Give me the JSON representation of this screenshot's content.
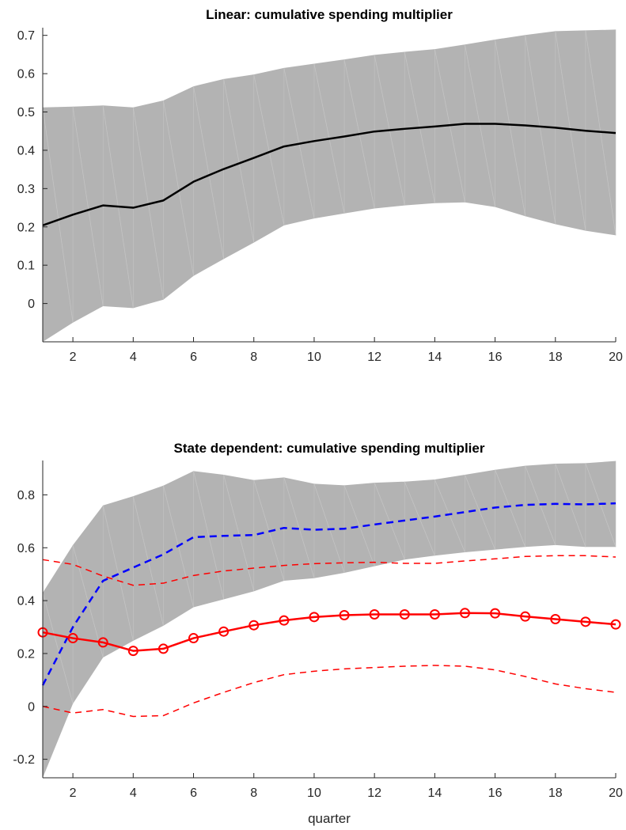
{
  "chart_data": [
    {
      "type": "line",
      "title": "Linear: cumulative spending multiplier",
      "xlabel": "",
      "ylabel": "",
      "xlim": [
        1,
        20
      ],
      "ylim": [
        -0.1,
        0.72
      ],
      "xticks": [
        2,
        4,
        6,
        8,
        10,
        12,
        14,
        16,
        18,
        20
      ],
      "yticks": [
        0,
        0.1,
        0.2,
        0.3,
        0.4,
        0.5,
        0.6,
        0.7
      ],
      "ytick_labels": [
        "0",
        "0.1",
        "0.2",
        "0.3",
        "0.4",
        "0.5",
        "0.6",
        "0.7"
      ],
      "grid": false,
      "band_color": "#b3b3b3",
      "x": [
        1,
        2,
        3,
        4,
        5,
        6,
        7,
        8,
        9,
        10,
        11,
        12,
        13,
        14,
        15,
        16,
        17,
        18,
        19,
        20
      ],
      "band": {
        "upper": [
          0.512,
          0.514,
          0.517,
          0.512,
          0.53,
          0.567,
          0.586,
          0.598,
          0.615,
          0.626,
          0.637,
          0.649,
          0.657,
          0.664,
          0.676,
          0.689,
          0.701,
          0.711,
          0.713,
          0.715
        ],
        "lower": [
          -0.1,
          -0.05,
          -0.007,
          -0.012,
          0.01,
          0.072,
          0.116,
          0.159,
          0.204,
          0.222,
          0.235,
          0.248,
          0.256,
          0.262,
          0.264,
          0.252,
          0.228,
          0.207,
          0.19,
          0.178
        ]
      },
      "series": [
        {
          "color": "#000000",
          "style": "solid",
          "marker": "none",
          "values": [
            0.204,
            0.232,
            0.256,
            0.25,
            0.269,
            0.318,
            0.351,
            0.38,
            0.41,
            0.424,
            0.436,
            0.449,
            0.456,
            0.462,
            0.469,
            0.469,
            0.465,
            0.459,
            0.451,
            0.445
          ]
        }
      ]
    },
    {
      "type": "line",
      "title": "State dependent: cumulative spending multiplier",
      "xlabel": "quarter",
      "ylabel": "",
      "xlim": [
        1,
        20
      ],
      "ylim": [
        -0.27,
        0.93
      ],
      "xticks": [
        2,
        4,
        6,
        8,
        10,
        12,
        14,
        16,
        18,
        20
      ],
      "yticks": [
        -0.2,
        0,
        0.2,
        0.4,
        0.6,
        0.8
      ],
      "ytick_labels": [
        "-0.2",
        "0",
        "0.2",
        "0.4",
        "0.6",
        "0.8"
      ],
      "grid": false,
      "band_color": "#b3b3b3",
      "x": [
        1,
        2,
        3,
        4,
        5,
        6,
        7,
        8,
        9,
        10,
        11,
        12,
        13,
        14,
        15,
        16,
        17,
        18,
        19,
        20
      ],
      "band": {
        "upper": [
          0.43,
          0.61,
          0.76,
          0.795,
          0.835,
          0.89,
          0.876,
          0.856,
          0.866,
          0.842,
          0.836,
          0.846,
          0.85,
          0.858,
          0.876,
          0.895,
          0.91,
          0.918,
          0.92,
          0.928
        ],
        "lower": [
          -0.27,
          0.01,
          0.185,
          0.248,
          0.305,
          0.375,
          0.405,
          0.435,
          0.475,
          0.485,
          0.505,
          0.53,
          0.555,
          0.57,
          0.583,
          0.593,
          0.603,
          0.61,
          0.603,
          0.603
        ]
      },
      "series": [
        {
          "color": "#0000ff",
          "style": "dashed",
          "marker": "none",
          "values": [
            0.08,
            0.3,
            0.475,
            0.525,
            0.575,
            0.64,
            0.645,
            0.648,
            0.675,
            0.668,
            0.672,
            0.688,
            0.703,
            0.718,
            0.735,
            0.752,
            0.762,
            0.766,
            0.764,
            0.768
          ]
        },
        {
          "color": "#ff0000",
          "style": "solid",
          "marker": "circle",
          "values": [
            0.28,
            0.258,
            0.242,
            0.21,
            0.218,
            0.258,
            0.283,
            0.307,
            0.325,
            0.338,
            0.345,
            0.348,
            0.348,
            0.348,
            0.353,
            0.352,
            0.34,
            0.33,
            0.32,
            0.31
          ]
        },
        {
          "color": "#ff0000",
          "style": "dashed",
          "marker": "none",
          "values": [
            0.555,
            0.537,
            0.493,
            0.458,
            0.466,
            0.495,
            0.512,
            0.523,
            0.533,
            0.54,
            0.543,
            0.545,
            0.541,
            0.541,
            0.55,
            0.558,
            0.567,
            0.57,
            0.57,
            0.565
          ]
        },
        {
          "color": "#ff0000",
          "style": "dashed",
          "marker": "none",
          "values": [
            0.0,
            -0.025,
            -0.012,
            -0.038,
            -0.035,
            0.013,
            0.053,
            0.09,
            0.12,
            0.133,
            0.142,
            0.147,
            0.152,
            0.155,
            0.152,
            0.138,
            0.113,
            0.085,
            0.067,
            0.053
          ]
        }
      ]
    }
  ]
}
